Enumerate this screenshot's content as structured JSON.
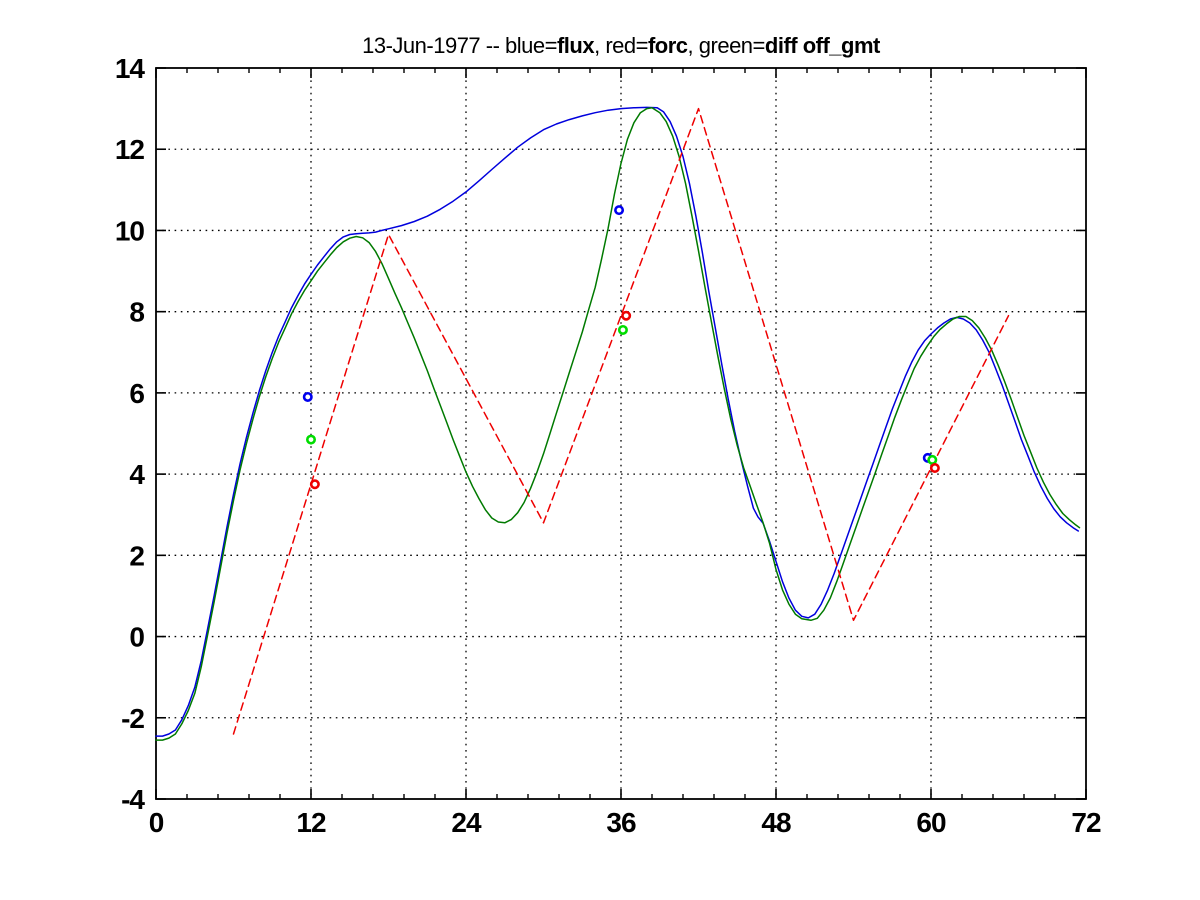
{
  "figure": {
    "background": "#ffffff",
    "title_segments": [
      {
        "text": "13-Jun-1977 -- blue=",
        "bold": false
      },
      {
        "text": "flux",
        "bold": true
      },
      {
        "text": ", red=",
        "bold": false
      },
      {
        "text": "forc",
        "bold": true
      },
      {
        "text": ", green=",
        "bold": false
      },
      {
        "text": "diff off_gmt",
        "bold": true
      }
    ],
    "title_plain": "13-Jun-1977 -- blue=flux, red=forc, green=diff off_gmt"
  },
  "chart_data": {
    "type": "line",
    "title": "13-Jun-1977 -- blue=flux, red=forc, green=diff off_gmt",
    "xlabel": "",
    "ylabel": "",
    "xlim": [
      0,
      72
    ],
    "ylim": [
      -4,
      14
    ],
    "xticks": [
      0,
      12,
      24,
      36,
      48,
      60,
      72
    ],
    "yticks": [
      -4,
      -2,
      0,
      2,
      4,
      6,
      8,
      10,
      12,
      14
    ],
    "xtick_labels": [
      "0",
      "12",
      "24",
      "36",
      "48",
      "60",
      "72"
    ],
    "ytick_labels": [
      "-4",
      "-2",
      "0",
      "2",
      "4",
      "6",
      "8",
      "10",
      "12",
      "14"
    ],
    "x_minor_step": 2.4,
    "grid": "dotted",
    "grid_color": "#000000",
    "legend_position": "in-title",
    "series": [
      {
        "name": "flux",
        "color": "#0000dd",
        "style": "solid",
        "points": [
          [
            0,
            -2.45
          ],
          [
            0.5,
            -2.45
          ],
          [
            1,
            -2.4
          ],
          [
            1.5,
            -2.3
          ],
          [
            2,
            -2.05
          ],
          [
            2.5,
            -1.7
          ],
          [
            3,
            -1.25
          ],
          [
            3.5,
            -0.6
          ],
          [
            4,
            0.2
          ],
          [
            4.5,
            1.0
          ],
          [
            5,
            1.85
          ],
          [
            5.5,
            2.7
          ],
          [
            6,
            3.5
          ],
          [
            6.5,
            4.25
          ],
          [
            7,
            4.9
          ],
          [
            7.5,
            5.5
          ],
          [
            8,
            6.05
          ],
          [
            8.5,
            6.55
          ],
          [
            9,
            7.0
          ],
          [
            9.5,
            7.4
          ],
          [
            10,
            7.75
          ],
          [
            10.5,
            8.1
          ],
          [
            11,
            8.4
          ],
          [
            11.5,
            8.68
          ],
          [
            12,
            8.92
          ],
          [
            12.5,
            9.15
          ],
          [
            13,
            9.35
          ],
          [
            13.5,
            9.55
          ],
          [
            14,
            9.72
          ],
          [
            14.5,
            9.84
          ],
          [
            15,
            9.9
          ],
          [
            15.5,
            9.92
          ],
          [
            16,
            9.93
          ],
          [
            16.5,
            9.94
          ],
          [
            17,
            9.96
          ],
          [
            17.5,
            10.0
          ],
          [
            18,
            10.04
          ],
          [
            19,
            10.12
          ],
          [
            20,
            10.22
          ],
          [
            21,
            10.35
          ],
          [
            22,
            10.52
          ],
          [
            23,
            10.72
          ],
          [
            24,
            10.95
          ],
          [
            25,
            11.22
          ],
          [
            26,
            11.5
          ],
          [
            27,
            11.78
          ],
          [
            28,
            12.05
          ],
          [
            29,
            12.28
          ],
          [
            30,
            12.48
          ],
          [
            31,
            12.62
          ],
          [
            32,
            12.73
          ],
          [
            33,
            12.82
          ],
          [
            34,
            12.9
          ],
          [
            35,
            12.96
          ],
          [
            36,
            13.0
          ],
          [
            37,
            13.02
          ],
          [
            38,
            13.03
          ],
          [
            38.8,
            13.02
          ],
          [
            39.3,
            12.92
          ],
          [
            39.8,
            12.68
          ],
          [
            40.3,
            12.32
          ],
          [
            40.8,
            11.82
          ],
          [
            41.3,
            11.15
          ],
          [
            41.8,
            10.35
          ],
          [
            42.3,
            9.45
          ],
          [
            42.8,
            8.5
          ],
          [
            43.3,
            7.6
          ],
          [
            43.8,
            6.7
          ],
          [
            44.3,
            5.85
          ],
          [
            44.8,
            5.05
          ],
          [
            45.3,
            4.35
          ],
          [
            45.8,
            3.7
          ],
          [
            46.25,
            3.16
          ],
          [
            46.6,
            2.95
          ],
          [
            47,
            2.79
          ],
          [
            47.5,
            2.35
          ],
          [
            48,
            1.85
          ],
          [
            48.5,
            1.35
          ],
          [
            49,
            0.95
          ],
          [
            49.5,
            0.65
          ],
          [
            50,
            0.5
          ],
          [
            50.5,
            0.46
          ],
          [
            51,
            0.55
          ],
          [
            51.5,
            0.8
          ],
          [
            52,
            1.15
          ],
          [
            52.5,
            1.55
          ],
          [
            53,
            2.0
          ],
          [
            53.5,
            2.45
          ],
          [
            54,
            2.9
          ],
          [
            54.5,
            3.35
          ],
          [
            55,
            3.8
          ],
          [
            55.5,
            4.25
          ],
          [
            56,
            4.7
          ],
          [
            56.5,
            5.15
          ],
          [
            57,
            5.6
          ],
          [
            57.5,
            6.0
          ],
          [
            58,
            6.4
          ],
          [
            58.5,
            6.75
          ],
          [
            59,
            7.05
          ],
          [
            59.5,
            7.28
          ],
          [
            60,
            7.45
          ],
          [
            60.5,
            7.6
          ],
          [
            61,
            7.72
          ],
          [
            61.5,
            7.82
          ],
          [
            62,
            7.86
          ],
          [
            62.5,
            7.82
          ],
          [
            63,
            7.72
          ],
          [
            63.5,
            7.55
          ],
          [
            64,
            7.3
          ],
          [
            64.5,
            7.0
          ],
          [
            65,
            6.6
          ],
          [
            65.5,
            6.2
          ],
          [
            66,
            5.75
          ],
          [
            66.5,
            5.3
          ],
          [
            67,
            4.85
          ],
          [
            67.5,
            4.45
          ],
          [
            68,
            4.05
          ],
          [
            68.5,
            3.7
          ],
          [
            69,
            3.4
          ],
          [
            69.5,
            3.15
          ],
          [
            70,
            2.95
          ],
          [
            70.5,
            2.8
          ],
          [
            71,
            2.68
          ],
          [
            71.4,
            2.6
          ]
        ]
      },
      {
        "name": "diff",
        "color": "#007a00",
        "style": "solid",
        "points": [
          [
            0,
            -2.55
          ],
          [
            0.5,
            -2.55
          ],
          [
            1,
            -2.5
          ],
          [
            1.5,
            -2.4
          ],
          [
            2,
            -2.15
          ],
          [
            2.5,
            -1.82
          ],
          [
            3,
            -1.4
          ],
          [
            3.5,
            -0.75
          ],
          [
            4,
            0.05
          ],
          [
            4.5,
            0.85
          ],
          [
            5,
            1.7
          ],
          [
            5.5,
            2.55
          ],
          [
            6,
            3.35
          ],
          [
            6.5,
            4.1
          ],
          [
            7,
            4.75
          ],
          [
            7.5,
            5.35
          ],
          [
            8,
            5.9
          ],
          [
            8.5,
            6.4
          ],
          [
            9,
            6.85
          ],
          [
            9.5,
            7.25
          ],
          [
            10,
            7.6
          ],
          [
            10.5,
            7.95
          ],
          [
            11,
            8.25
          ],
          [
            11.5,
            8.52
          ],
          [
            12,
            8.76
          ],
          [
            12.5,
            9.0
          ],
          [
            13,
            9.2
          ],
          [
            13.5,
            9.4
          ],
          [
            14,
            9.58
          ],
          [
            14.5,
            9.72
          ],
          [
            15,
            9.81
          ],
          [
            15.5,
            9.85
          ],
          [
            16,
            9.82
          ],
          [
            16.5,
            9.7
          ],
          [
            17,
            9.48
          ],
          [
            17.5,
            9.18
          ],
          [
            18,
            8.82
          ],
          [
            18.5,
            8.45
          ],
          [
            19,
            8.1
          ],
          [
            19.5,
            7.72
          ],
          [
            20,
            7.35
          ],
          [
            20.5,
            6.95
          ],
          [
            21,
            6.55
          ],
          [
            21.5,
            6.12
          ],
          [
            22,
            5.7
          ],
          [
            22.5,
            5.28
          ],
          [
            23,
            4.85
          ],
          [
            23.5,
            4.45
          ],
          [
            24,
            4.05
          ],
          [
            24.5,
            3.7
          ],
          [
            25,
            3.4
          ],
          [
            25.5,
            3.12
          ],
          [
            26,
            2.92
          ],
          [
            26.5,
            2.82
          ],
          [
            27,
            2.8
          ],
          [
            27.5,
            2.88
          ],
          [
            28,
            3.05
          ],
          [
            28.5,
            3.3
          ],
          [
            29,
            3.65
          ],
          [
            29.5,
            4.05
          ],
          [
            30,
            4.5
          ],
          [
            30.5,
            5.0
          ],
          [
            31,
            5.5
          ],
          [
            31.5,
            6.0
          ],
          [
            32,
            6.5
          ],
          [
            32.5,
            7.0
          ],
          [
            33,
            7.5
          ],
          [
            33.5,
            8.05
          ],
          [
            34,
            8.6
          ],
          [
            34.5,
            9.3
          ],
          [
            35,
            10.05
          ],
          [
            35.5,
            10.9
          ],
          [
            36,
            11.65
          ],
          [
            36.5,
            12.25
          ],
          [
            37,
            12.65
          ],
          [
            37.5,
            12.9
          ],
          [
            38,
            13.0
          ],
          [
            38.4,
            13.02
          ],
          [
            39,
            12.9
          ],
          [
            39.5,
            12.68
          ],
          [
            40,
            12.32
          ],
          [
            40.5,
            11.82
          ],
          [
            41,
            11.15
          ],
          [
            41.5,
            10.35
          ],
          [
            42,
            9.5
          ],
          [
            42.5,
            8.6
          ],
          [
            43,
            7.75
          ],
          [
            43.5,
            6.9
          ],
          [
            44,
            6.1
          ],
          [
            44.5,
            5.35
          ],
          [
            45,
            4.7
          ],
          [
            45.5,
            4.15
          ],
          [
            46,
            3.7
          ],
          [
            46.5,
            3.25
          ],
          [
            47,
            2.8
          ],
          [
            47.5,
            2.3
          ],
          [
            48,
            1.65
          ],
          [
            48.5,
            1.15
          ],
          [
            49,
            0.8
          ],
          [
            49.5,
            0.55
          ],
          [
            50,
            0.44
          ],
          [
            50.7,
            0.4
          ],
          [
            51.2,
            0.45
          ],
          [
            51.7,
            0.65
          ],
          [
            52.2,
            0.95
          ],
          [
            52.7,
            1.35
          ],
          [
            53.2,
            1.8
          ],
          [
            53.7,
            2.25
          ],
          [
            54.2,
            2.7
          ],
          [
            54.7,
            3.15
          ],
          [
            55.2,
            3.6
          ],
          [
            55.7,
            4.05
          ],
          [
            56.2,
            4.5
          ],
          [
            56.7,
            4.95
          ],
          [
            57.2,
            5.4
          ],
          [
            57.7,
            5.82
          ],
          [
            58.2,
            6.22
          ],
          [
            58.7,
            6.6
          ],
          [
            59.2,
            6.9
          ],
          [
            59.7,
            7.15
          ],
          [
            60.2,
            7.38
          ],
          [
            60.7,
            7.56
          ],
          [
            61.2,
            7.7
          ],
          [
            61.7,
            7.82
          ],
          [
            62.2,
            7.88
          ],
          [
            62.7,
            7.88
          ],
          [
            63.2,
            7.78
          ],
          [
            63.7,
            7.6
          ],
          [
            64.2,
            7.35
          ],
          [
            64.7,
            7.05
          ],
          [
            65.2,
            6.68
          ],
          [
            65.7,
            6.28
          ],
          [
            66.2,
            5.85
          ],
          [
            66.7,
            5.4
          ],
          [
            67.2,
            4.95
          ],
          [
            67.7,
            4.55
          ],
          [
            68.2,
            4.15
          ],
          [
            68.7,
            3.8
          ],
          [
            69.2,
            3.5
          ],
          [
            69.7,
            3.25
          ],
          [
            70.2,
            3.03
          ],
          [
            70.7,
            2.88
          ],
          [
            71.2,
            2.75
          ],
          [
            71.5,
            2.68
          ]
        ]
      },
      {
        "name": "forc",
        "color": "#ee0000",
        "style": "dashed",
        "points": [
          [
            6,
            -2.4
          ],
          [
            18,
            9.9
          ],
          [
            30,
            2.8
          ],
          [
            42,
            13.0
          ],
          [
            54,
            0.4
          ],
          [
            66,
            7.9
          ]
        ]
      }
    ],
    "markers": [
      {
        "name": "flux-obs",
        "color": "#0000ee",
        "shape": "circle",
        "points": [
          [
            11.75,
            5.9
          ],
          [
            35.85,
            10.5
          ],
          [
            59.75,
            4.4
          ]
        ]
      },
      {
        "name": "diff-obs",
        "color": "#00dd00",
        "shape": "circle",
        "points": [
          [
            12.0,
            4.85
          ],
          [
            36.15,
            7.55
          ],
          [
            60.1,
            4.35
          ]
        ]
      },
      {
        "name": "forc-obs",
        "color": "#ee0000",
        "shape": "circle",
        "points": [
          [
            12.3,
            3.75
          ],
          [
            36.4,
            7.9
          ],
          [
            60.3,
            4.15
          ]
        ]
      }
    ]
  }
}
